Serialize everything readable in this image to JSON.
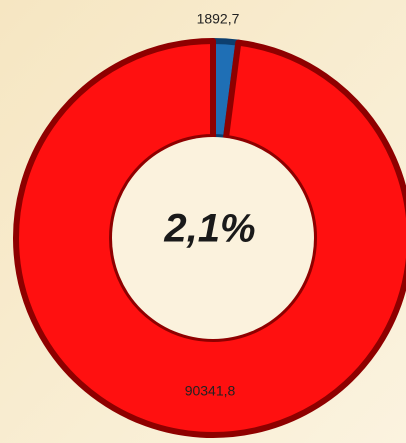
{
  "chart_data": {
    "type": "doughnut",
    "categories": [
      null,
      null
    ],
    "values": [
      1892.7,
      90341.8
    ],
    "value_labels": [
      "1892,7",
      "90341,8"
    ],
    "colors": [
      "#1f6fb5",
      "#ff1010"
    ],
    "center_label": "2,1%"
  }
}
